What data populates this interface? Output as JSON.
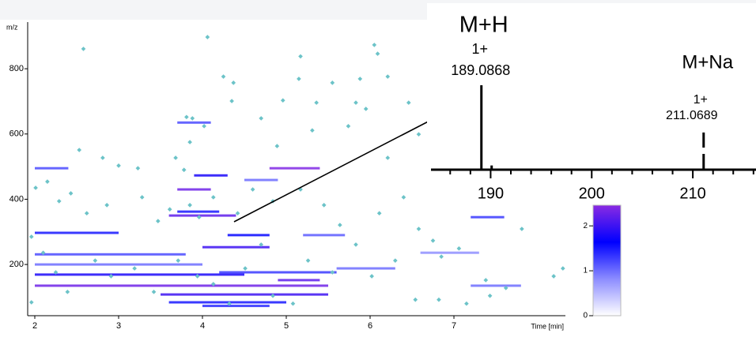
{
  "chart_data": [
    {
      "type": "scatter",
      "xlabel": "Time [min]",
      "ylabel": "m/z",
      "xlim": [
        1.915,
        8.33
      ],
      "ylim": [
        43,
        943
      ],
      "xticks": [
        2,
        3,
        4,
        5,
        6,
        7
      ],
      "yticks": [
        200,
        400,
        600,
        800
      ],
      "color": "#6cc3c8",
      "x": [
        4.06,
        2.58,
        6.05,
        6.09,
        5.17,
        4.25,
        4.37,
        4.35,
        5.15,
        5.55,
        5.88,
        6.21,
        4.96,
        5.36,
        5.83,
        5.95,
        6.46,
        3.81,
        3.88,
        4.02,
        3.85,
        3.68,
        3.78,
        4.7,
        4.89,
        5.31,
        5.74,
        6.21,
        6.58,
        2.53,
        2.81,
        3.0,
        3.23,
        2.01,
        2.15,
        2.29,
        2.43,
        2.62,
        2.86,
        3.28,
        3.47,
        3.61,
        3.85,
        3.96,
        4.13,
        4.42,
        4.6,
        4.84,
        5.17,
        5.45,
        5.64,
        6.11,
        6.4,
        6.58,
        6.75,
        7.06,
        7.81,
        7.38,
        7.62,
        8.19,
        8.3,
        1.96,
        2.1,
        2.25,
        2.39,
        1.96,
        2.72,
        2.91,
        3.19,
        3.42,
        3.71,
        3.94,
        4.13,
        4.32,
        4.51,
        4.7,
        4.84,
        5.08,
        5.26,
        5.55,
        5.83,
        6.02,
        6.3,
        6.54,
        6.82,
        7.15,
        7.43,
        6.85
      ],
      "y": [
        897,
        861,
        873,
        846,
        838,
        776,
        757,
        701,
        769,
        757,
        769,
        776,
        703,
        696,
        696,
        677,
        696,
        652,
        648,
        624,
        575,
        527,
        490,
        648,
        563,
        611,
        624,
        527,
        599,
        551,
        527,
        503,
        495,
        435,
        454,
        394,
        418,
        357,
        382,
        406,
        333,
        369,
        382,
        345,
        406,
        357,
        430,
        394,
        430,
        382,
        321,
        357,
        406,
        309,
        273,
        249,
        309,
        152,
        128,
        164,
        188,
        285,
        236,
        176,
        116,
        84,
        212,
        164,
        188,
        116,
        212,
        164,
        140,
        80,
        188,
        261,
        104,
        80,
        212,
        176,
        261,
        164,
        212,
        92,
        92,
        80,
        104,
        224
      ],
      "heatmap": [
        {
          "start": 2.0,
          "end": 3.0,
          "mz": 297,
          "intensity": 1.5
        },
        {
          "start": 2.0,
          "end": 5.5,
          "mz": 135,
          "intensity": 2.3
        },
        {
          "start": 2.0,
          "end": 4.5,
          "mz": 169,
          "intensity": 1.8
        },
        {
          "start": 2.0,
          "end": 3.8,
          "mz": 231,
          "intensity": 1.2
        },
        {
          "start": 2.0,
          "end": 4.0,
          "mz": 200,
          "intensity": 1.0
        },
        {
          "start": 3.5,
          "end": 5.5,
          "mz": 108,
          "intensity": 2.0
        },
        {
          "start": 3.6,
          "end": 5.0,
          "mz": 84,
          "intensity": 1.5
        },
        {
          "start": 4.0,
          "end": 4.8,
          "mz": 73,
          "intensity": 1.4
        },
        {
          "start": 4.9,
          "end": 5.4,
          "mz": 152,
          "intensity": 2.2
        },
        {
          "start": 4.2,
          "end": 5.6,
          "mz": 176,
          "intensity": 1.3
        },
        {
          "start": 4.0,
          "end": 4.8,
          "mz": 253,
          "intensity": 2.0
        },
        {
          "start": 4.3,
          "end": 4.8,
          "mz": 290,
          "intensity": 1.6
        },
        {
          "start": 3.6,
          "end": 4.4,
          "mz": 350,
          "intensity": 2.2
        },
        {
          "start": 3.7,
          "end": 4.2,
          "mz": 362,
          "intensity": 1.5
        },
        {
          "start": 3.7,
          "end": 4.1,
          "mz": 430,
          "intensity": 2.3
        },
        {
          "start": 3.9,
          "end": 4.3,
          "mz": 473,
          "intensity": 1.8
        },
        {
          "start": 4.8,
          "end": 5.4,
          "mz": 495,
          "intensity": 2.4
        },
        {
          "start": 2.0,
          "end": 2.4,
          "mz": 495,
          "intensity": 1.2
        },
        {
          "start": 4.5,
          "end": 4.9,
          "mz": 459,
          "intensity": 1.0
        },
        {
          "start": 3.7,
          "end": 4.1,
          "mz": 635,
          "intensity": 1.2
        },
        {
          "start": 5.2,
          "end": 5.7,
          "mz": 290,
          "intensity": 1.1
        },
        {
          "start": 7.2,
          "end": 7.6,
          "mz": 345,
          "intensity": 1.3
        },
        {
          "start": 7.2,
          "end": 7.8,
          "mz": 135,
          "intensity": 1.0
        },
        {
          "start": 5.6,
          "end": 6.3,
          "mz": 188,
          "intensity": 1.0
        },
        {
          "start": 6.6,
          "end": 7.3,
          "mz": 236,
          "intensity": 0.8
        }
      ]
    },
    {
      "type": "spectrum",
      "xlim": [
        184.1,
        216.25
      ],
      "ylim": [
        0,
        100
      ],
      "xticks": [
        190,
        200,
        210
      ],
      "xminorticks": [
        186,
        188,
        192,
        194,
        196,
        198,
        202,
        204,
        206,
        208,
        212,
        214,
        216
      ],
      "x": [
        189.0868,
        190.1,
        211.0689
      ],
      "values": [
        100,
        5,
        44
      ],
      "dashed": [
        false,
        false,
        true
      ],
      "ions": [
        "M+H",
        null,
        "M+Na"
      ],
      "charges": [
        "1+",
        null,
        "1+"
      ],
      "color": "#000000"
    },
    {
      "type": "colorbar",
      "ylim": [
        0,
        2.46
      ],
      "yticks": [
        0,
        1,
        2
      ],
      "colors": [
        "#ffffff",
        "#8c8cff",
        "#0000ff",
        "#8a2be2"
      ]
    }
  ]
}
